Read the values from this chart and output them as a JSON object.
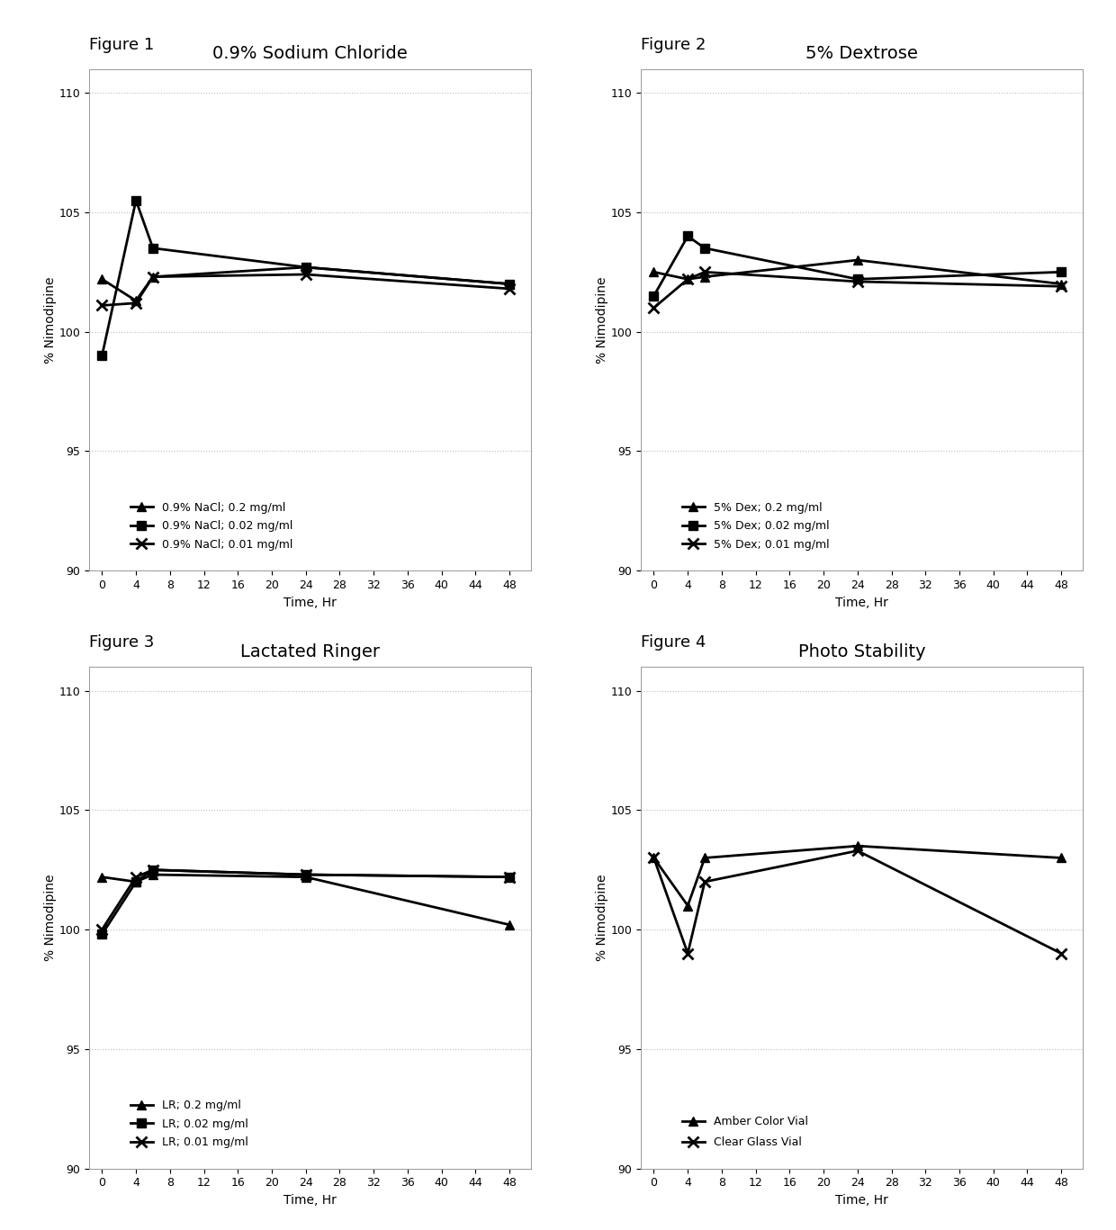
{
  "time_points": [
    0,
    4,
    6,
    24,
    48
  ],
  "fig1_title": "0.9% Sodium Chloride",
  "fig2_title": "5% Dextrose",
  "fig3_title": "Lactated Ringer",
  "fig4_title": "Photo Stability",
  "fig1_series": {
    "triangle": [
      102.2,
      101.3,
      102.3,
      102.7,
      102.0
    ],
    "square": [
      99.0,
      105.5,
      103.5,
      102.7,
      102.0
    ],
    "cross": [
      101.1,
      101.2,
      102.3,
      102.4,
      101.8
    ]
  },
  "fig2_series": {
    "triangle": [
      102.5,
      102.2,
      102.3,
      103.0,
      102.0
    ],
    "square": [
      101.5,
      104.0,
      103.5,
      102.2,
      102.5
    ],
    "cross": [
      101.0,
      102.2,
      102.5,
      102.1,
      101.9
    ]
  },
  "fig3_series": {
    "triangle": [
      102.2,
      102.0,
      102.3,
      102.2,
      100.2
    ],
    "square": [
      99.8,
      102.0,
      102.5,
      102.3,
      102.2
    ],
    "cross": [
      100.0,
      102.2,
      102.5,
      102.3,
      102.2
    ]
  },
  "fig4_series": {
    "triangle": [
      103.0,
      101.0,
      103.0,
      103.5,
      103.0
    ],
    "cross": [
      103.0,
      99.0,
      102.0,
      103.3,
      99.0
    ]
  },
  "fig1_legend": [
    "0.9% NaCl; 0.2 mg/ml",
    "0.9% NaCl; 0.02 mg/ml",
    "0.9% NaCl; 0.01 mg/ml"
  ],
  "fig2_legend": [
    "5% Dex; 0.2 mg/ml",
    "5% Dex; 0.02 mg/ml",
    "5% Dex; 0.01 mg/ml"
  ],
  "fig3_legend": [
    "LR; 0.2 mg/ml",
    "LR; 0.02 mg/ml",
    "LR; 0.01 mg/ml"
  ],
  "fig4_legend": [
    "Amber Color Vial",
    "Clear Glass Vial"
  ],
  "xlabel": "Time, Hr",
  "ylabel": "% Nimodipine",
  "ylim": [
    90,
    111
  ],
  "yticks": [
    90,
    95,
    100,
    105,
    110
  ],
  "xticks": [
    0,
    4,
    8,
    12,
    16,
    20,
    24,
    28,
    32,
    36,
    40,
    44,
    48
  ],
  "figure_labels": [
    "Figure 1",
    "Figure 2",
    "Figure 3",
    "Figure 4"
  ],
  "color": "#000000",
  "bg_color": "#ffffff",
  "grid_color": "#bbbbbb"
}
